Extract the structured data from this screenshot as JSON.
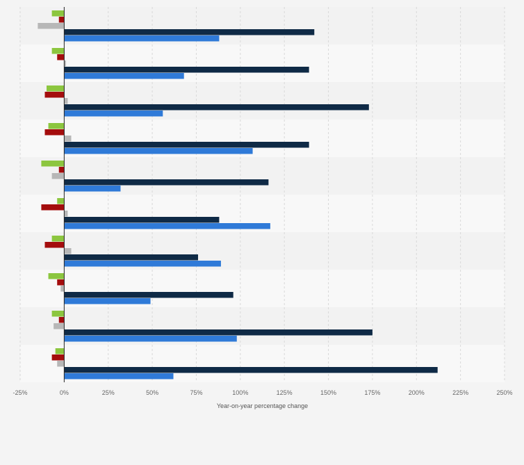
{
  "chart_data": {
    "type": "bar",
    "orientation": "horizontal",
    "xlabel": "Year-on-year percentage change",
    "xlim": [
      -25,
      250
    ],
    "x_ticks": [
      "-25%",
      "0%",
      "25%",
      "50%",
      "75%",
      "100%",
      "125%",
      "150%",
      "175%",
      "200%",
      "225%",
      "250%"
    ],
    "grid": true,
    "legend": "none",
    "categories": [
      "",
      "",
      "",
      "",
      "",
      "",
      "",
      "",
      "",
      ""
    ],
    "series": [
      {
        "color": "#8cc63f",
        "values": [
          -7,
          -7,
          -10,
          -9,
          -13,
          -4,
          -7,
          -9,
          -7,
          -5
        ]
      },
      {
        "color": "#a40d0d",
        "values": [
          -3,
          -4,
          -11,
          -11,
          -3,
          -13,
          -11,
          -4,
          -3,
          -7
        ]
      },
      {
        "color": "#b7b7b7",
        "values": [
          -15,
          1,
          2,
          4,
          -7,
          2,
          4,
          -2,
          -6,
          -4
        ]
      },
      {
        "color": "#0f2a46",
        "values": [
          142,
          139,
          173,
          139,
          116,
          88,
          76,
          96,
          175,
          212
        ]
      },
      {
        "color": "#2f7ad8",
        "values": [
          88,
          68,
          56,
          107,
          32,
          117,
          89,
          49,
          98,
          62
        ]
      }
    ]
  }
}
